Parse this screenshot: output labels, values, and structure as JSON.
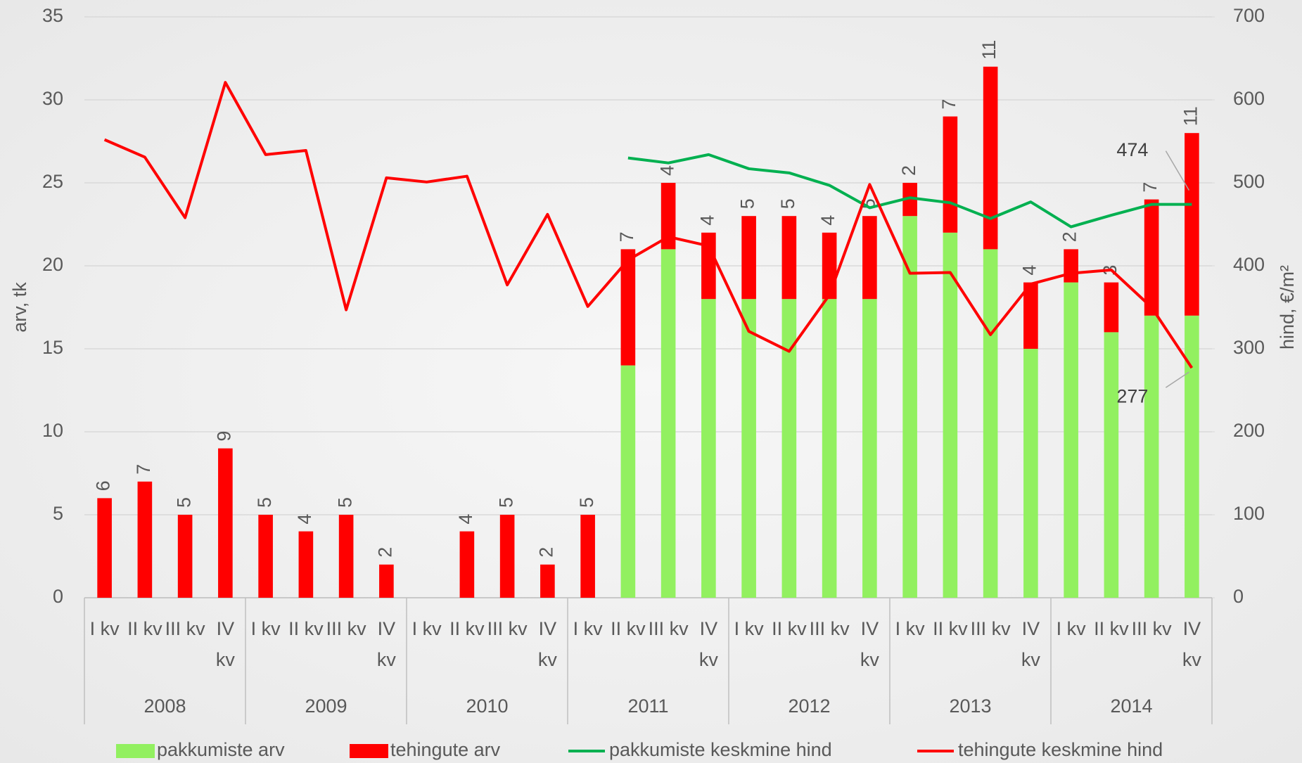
{
  "chart_data": {
    "type": "bar",
    "categories": [
      "I kv",
      "II kv",
      "III kv",
      "IV kv",
      "I kv",
      "II kv",
      "III kv",
      "IV kv",
      "I kv",
      "II kv",
      "III kv",
      "IV kv",
      "I kv",
      "II kv",
      "III kv",
      "IV kv",
      "I kv",
      "II kv",
      "III kv",
      "IV kv",
      "I kv",
      "II kv",
      "III kv",
      "IV kv",
      "I kv",
      "II kv",
      "III kv",
      "IV kv"
    ],
    "groups": [
      "2008",
      "2009",
      "2010",
      "2011",
      "2012",
      "2013",
      "2014"
    ],
    "ylabel": "arv, tk",
    "y2label": "hind, €/m²",
    "ylim": [
      0,
      35
    ],
    "yticks": [
      0,
      5,
      10,
      15,
      20,
      25,
      30,
      35
    ],
    "y2lim": [
      0,
      700
    ],
    "y2ticks": [
      0,
      100,
      200,
      300,
      400,
      500,
      600,
      700
    ],
    "grid": true,
    "legend": "bottom",
    "series": [
      {
        "name": "pakkumiste arv",
        "type": "bar",
        "color": "#92f060",
        "values": [
          null,
          null,
          null,
          null,
          null,
          null,
          null,
          null,
          null,
          null,
          null,
          null,
          null,
          14,
          21,
          18,
          18,
          18,
          18,
          18,
          23,
          22,
          21,
          15,
          19,
          16,
          17,
          17
        ]
      },
      {
        "name": "tehingute arv",
        "type": "bar",
        "color": "#ff0000",
        "values": [
          6,
          7,
          5,
          9,
          5,
          4,
          5,
          2,
          null,
          4,
          5,
          2,
          5,
          7,
          4,
          4,
          5,
          5,
          4,
          5,
          2,
          7,
          11,
          4,
          2,
          3,
          7,
          11
        ]
      },
      {
        "name": "pakkumiste keskmine hind",
        "type": "line",
        "axis": "y2",
        "color": "#00b050",
        "values": [
          null,
          null,
          null,
          null,
          null,
          null,
          null,
          null,
          null,
          null,
          null,
          null,
          null,
          530,
          524,
          534,
          517,
          512,
          497,
          470,
          482,
          476,
          457,
          477,
          447,
          461,
          474,
          474
        ]
      },
      {
        "name": "tehingute keskmine hind",
        "type": "line",
        "axis": "y2",
        "color": "#ff0000",
        "values": [
          552,
          531,
          458,
          621,
          534,
          539,
          347,
          506,
          501,
          508,
          377,
          462,
          351,
          407,
          435,
          424,
          321,
          297,
          365,
          498,
          391,
          392,
          317,
          378,
          391,
          395,
          350,
          277
        ]
      }
    ]
  }
}
